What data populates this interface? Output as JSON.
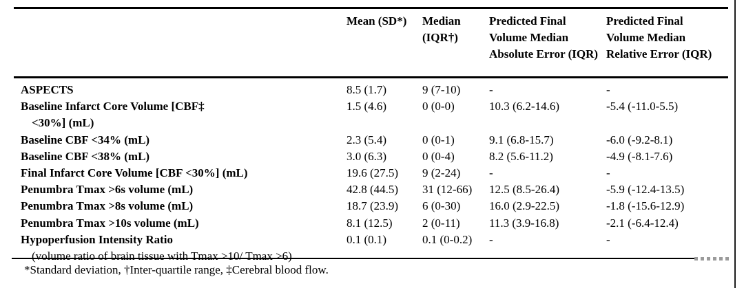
{
  "table": {
    "headers": [
      "",
      "Mean (SD*)",
      "Median (IQR†)",
      "Predicted Final Volume Median Absolute Error (IQR)",
      "Predicted Final Volume Median Relative Error (IQR)"
    ],
    "rows": [
      {
        "label": "ASPECTS",
        "mean": "8.5 (1.7)",
        "median": "9 (7-10)",
        "abs_error": "-",
        "rel_error": "-"
      },
      {
        "label": "Baseline Infarct Core Volume [CBF‡",
        "label2": "<30%] (mL)",
        "label2_bold": true,
        "mean": "1.5 (4.6)",
        "median": "0 (0-0)",
        "abs_error": "10.3 (6.2-14.6)",
        "rel_error": "-5.4 (-11.0-5.5)"
      },
      {
        "label": "Baseline CBF <34% (mL)",
        "mean": "2.3 (5.4)",
        "median": "0 (0-1)",
        "abs_error": "9.1 (6.8-15.7)",
        "rel_error": "-6.0 (-9.2-8.1)"
      },
      {
        "label": "Baseline CBF <38% (mL)",
        "mean": "3.0 (6.3)",
        "median": "0 (0-4)",
        "abs_error": "8.2 (5.6-11.2)",
        "rel_error": "-4.9 (-8.1-7.6)"
      },
      {
        "label": "Final Infarct Core Volume [CBF <30%] (mL)",
        "mean": "19.6 (27.5)",
        "median": "9 (2-24)",
        "abs_error": "-",
        "rel_error": "-"
      },
      {
        "label": "Penumbra Tmax >6s volume (mL)",
        "mean": "42.8 (44.5)",
        "median": "31 (12-66)",
        "abs_error": "12.5 (8.5-26.4)",
        "rel_error": "-5.9 (-12.4-13.5)"
      },
      {
        "label": "Penumbra Tmax >8s volume (mL)",
        "mean": "18.7 (23.9)",
        "median": "6 (0-30)",
        "abs_error": "16.0 (2.9-22.5)",
        "rel_error": "-1.8 (-15.6-12.9)"
      },
      {
        "label": "Penumbra Tmax >10s volume (mL)",
        "mean": "8.1 (12.5)",
        "median": "2 (0-11)",
        "abs_error": "11.3 (3.9-16.8)",
        "rel_error": "-2.1 (-6.4-12.4)"
      },
      {
        "label": "Hypoperfusion Intensity Ratio",
        "label2": "(volume ratio of brain tissue with Tmax >10/ Tmax >6)",
        "label2_bold": false,
        "mean": "0.1 (0.1)",
        "median": "0.1 (0-0.2)",
        "abs_error": "-",
        "rel_error": "-"
      }
    ],
    "footnote": "*Standard deviation, †Inter-quartile range, ‡Cerebral blood flow."
  },
  "colors": {
    "text": "#000000",
    "rule": "#000000",
    "background": "#ffffff"
  }
}
